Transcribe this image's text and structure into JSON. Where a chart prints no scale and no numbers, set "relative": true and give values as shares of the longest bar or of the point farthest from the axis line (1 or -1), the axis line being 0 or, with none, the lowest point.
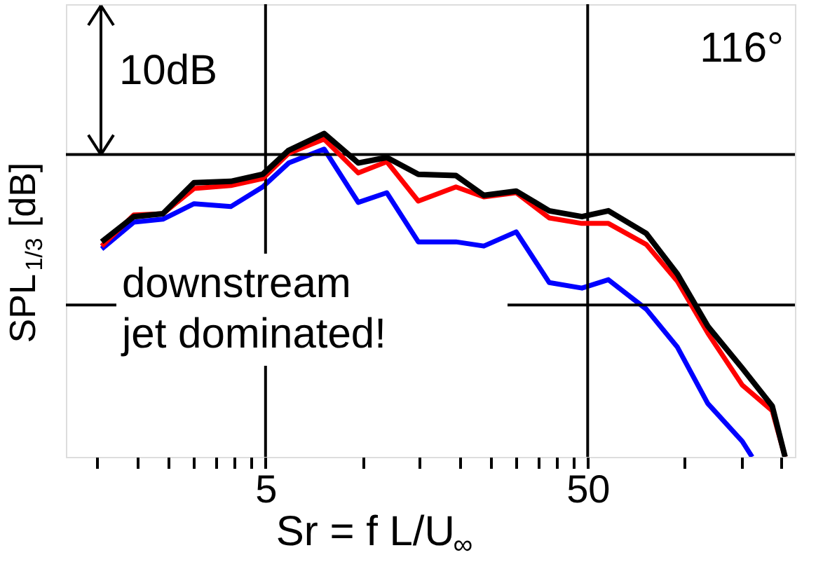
{
  "chart_data": {
    "type": "line",
    "relative": true,
    "log": "x",
    "xlabel": "Sr = f L/U$_{∞}$",
    "ylabel": "SPL$_{1/3}$ [dB]",
    "xlim": [
      1.2,
      220
    ],
    "xticks": [
      {
        "value": 1.5,
        "label": null
      },
      {
        "value": 2,
        "label": null
      },
      {
        "value": 2.5,
        "label": null
      },
      {
        "value": 3,
        "label": null
      },
      {
        "value": 3.5,
        "label": null
      },
      {
        "value": 4,
        "label": null
      },
      {
        "value": 4.5,
        "label": null
      },
      5,
      {
        "value": 10,
        "label": null
      },
      {
        "value": 15,
        "label": null
      },
      {
        "value": 20,
        "label": null
      },
      {
        "value": 25,
        "label": null
      },
      {
        "value": 30,
        "label": null
      },
      {
        "value": 35,
        "label": null
      },
      {
        "value": 40,
        "label": null
      },
      {
        "value": 45,
        "label": null
      },
      50,
      {
        "value": 100,
        "label": null
      },
      {
        "value": 150,
        "label": null
      },
      {
        "value": 200,
        "label": null
      }
    ],
    "x": [
      1.55,
      1.95,
      2.4,
      3.0,
      3.9,
      4.9,
      5.9,
      7.6,
      9.7,
      11.9,
      14.9,
      19.5,
      23.8,
      30,
      38,
      48,
      58,
      76,
      95,
      118,
      151,
      187,
      205
    ],
    "series": [
      {
        "color": "#0000ff",
        "x": [
          1.55,
          1.95,
          2.4,
          3.0,
          3.9,
          4.9,
          5.9,
          7.6,
          9.7,
          11.9,
          14.9,
          19.5,
          23.8,
          30,
          38,
          48,
          58,
          76,
          95,
          118,
          151,
          162
        ],
        "values": [
          0.643,
          0.726,
          0.735,
          0.783,
          0.774,
          0.835,
          0.909,
          0.952,
          0.787,
          0.817,
          0.665,
          0.665,
          0.652,
          0.696,
          0.539,
          0.522,
          0.548,
          0.457,
          0.339,
          0.165,
          0.048,
          0
        ]
      },
      {
        "color": "#ff0000",
        "values": [
          0.652,
          0.748,
          0.752,
          0.83,
          0.839,
          0.861,
          0.939,
          0.983,
          0.878,
          0.913,
          0.791,
          0.835,
          0.804,
          0.817,
          0.739,
          0.722,
          0.722,
          0.657,
          0.543,
          0.383,
          0.222,
          0.143,
          0
        ]
      },
      {
        "color": "#000000",
        "values": [
          0.665,
          0.743,
          0.752,
          0.848,
          0.852,
          0.874,
          0.948,
          1.0,
          0.909,
          0.926,
          0.874,
          0.87,
          0.809,
          0.822,
          0.761,
          0.743,
          0.761,
          0.691,
          0.565,
          0.404,
          0.274,
          0.157,
          0
        ]
      }
    ],
    "ref_lines": [
      {
        "axis": "x",
        "value": 5
      },
      {
        "axis": "x",
        "value": 50
      },
      {
        "axis": "y",
        "value": 0.935
      },
      {
        "axis": "y",
        "value": 0.47
      }
    ],
    "annotations": [
      "10dB",
      "116°",
      "downstream\njet dominated!"
    ],
    "marker": "none",
    "line_style": "solid",
    "grid": false
  }
}
